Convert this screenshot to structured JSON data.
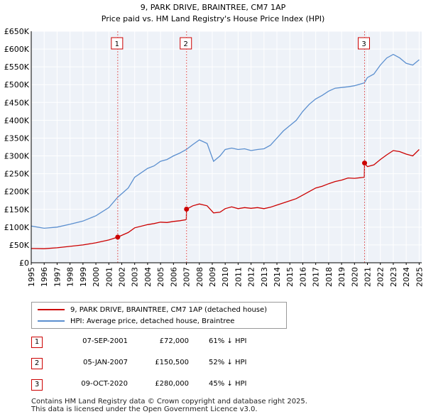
{
  "chart_data": {
    "type": "line",
    "title": "9, PARK DRIVE, BRAINTREE, CM7 1AP",
    "subtitle": "Price paid vs. HM Land Registry's House Price Index (HPI)",
    "xlim": [
      1995,
      2025.2
    ],
    "ylim": [
      0,
      650000
    ],
    "y_ticks": [
      {
        "v": 0,
        "label": "£0"
      },
      {
        "v": 50000,
        "label": "£50K"
      },
      {
        "v": 100000,
        "label": "£100K"
      },
      {
        "v": 150000,
        "label": "£150K"
      },
      {
        "v": 200000,
        "label": "£200K"
      },
      {
        "v": 250000,
        "label": "£250K"
      },
      {
        "v": 300000,
        "label": "£300K"
      },
      {
        "v": 350000,
        "label": "£350K"
      },
      {
        "v": 400000,
        "label": "£400K"
      },
      {
        "v": 450000,
        "label": "£450K"
      },
      {
        "v": 500000,
        "label": "£500K"
      },
      {
        "v": 550000,
        "label": "£550K"
      },
      {
        "v": 600000,
        "label": "£600K"
      },
      {
        "v": 650000,
        "label": "£650K"
      }
    ],
    "x_ticks": [
      "1995",
      "1996",
      "1997",
      "1998",
      "1999",
      "2000",
      "2001",
      "2002",
      "2003",
      "2004",
      "2005",
      "2006",
      "2007",
      "2008",
      "2009",
      "2010",
      "2011",
      "2012",
      "2013",
      "2014",
      "2015",
      "2016",
      "2017",
      "2018",
      "2019",
      "2020",
      "2021",
      "2022",
      "2023",
      "2024",
      "2025"
    ],
    "series": [
      {
        "name": "9, PARK DRIVE, BRAINTREE, CM7 1AP (detached house)",
        "color": "#cc0000",
        "points": [
          [
            1995,
            40000
          ],
          [
            1996,
            39500
          ],
          [
            1997,
            42000
          ],
          [
            1998,
            46000
          ],
          [
            1999,
            50000
          ],
          [
            2000,
            56000
          ],
          [
            2001,
            64000
          ],
          [
            2001.69,
            72000
          ],
          [
            2002.5,
            85000
          ],
          [
            2003,
            98000
          ],
          [
            2004,
            107000
          ],
          [
            2004.5,
            110000
          ],
          [
            2005,
            114000
          ],
          [
            2005.5,
            113000
          ],
          [
            2006,
            116000
          ],
          [
            2006.5,
            118000
          ],
          [
            2006.99,
            121000
          ],
          [
            2007.01,
            150500
          ],
          [
            2007.5,
            160000
          ],
          [
            2008,
            165000
          ],
          [
            2008.6,
            160000
          ],
          [
            2009.1,
            140000
          ],
          [
            2009.6,
            142000
          ],
          [
            2010,
            152000
          ],
          [
            2010.5,
            157000
          ],
          [
            2011,
            152000
          ],
          [
            2011.5,
            155000
          ],
          [
            2012,
            153000
          ],
          [
            2012.5,
            155000
          ],
          [
            2013,
            152000
          ],
          [
            2013.5,
            156000
          ],
          [
            2014,
            162000
          ],
          [
            2014.5,
            168000
          ],
          [
            2015,
            174000
          ],
          [
            2015.5,
            180000
          ],
          [
            2016,
            190000
          ],
          [
            2016.5,
            200000
          ],
          [
            2017,
            210000
          ],
          [
            2017.5,
            215000
          ],
          [
            2018,
            222000
          ],
          [
            2018.5,
            228000
          ],
          [
            2019,
            232000
          ],
          [
            2019.5,
            238000
          ],
          [
            2020,
            237000
          ],
          [
            2020.76,
            240000
          ],
          [
            2020.78,
            280000
          ],
          [
            2021,
            270000
          ],
          [
            2021.5,
            275000
          ],
          [
            2022,
            290000
          ],
          [
            2022.5,
            303000
          ],
          [
            2023,
            315000
          ],
          [
            2023.5,
            312000
          ],
          [
            2024,
            305000
          ],
          [
            2024.5,
            300000
          ],
          [
            2025,
            318000
          ]
        ]
      },
      {
        "name": "HPI: Average price, detached house, Braintree",
        "color": "#5b8fcf",
        "points": [
          [
            1995,
            103000
          ],
          [
            1996,
            97000
          ],
          [
            1997,
            100000
          ],
          [
            1998,
            108000
          ],
          [
            1999,
            117000
          ],
          [
            2000,
            132000
          ],
          [
            2001,
            155000
          ],
          [
            2001.69,
            184000
          ],
          [
            2002.5,
            210000
          ],
          [
            2003,
            240000
          ],
          [
            2004,
            265000
          ],
          [
            2004.5,
            272000
          ],
          [
            2005,
            285000
          ],
          [
            2005.5,
            290000
          ],
          [
            2006,
            300000
          ],
          [
            2006.5,
            308000
          ],
          [
            2007,
            318000
          ],
          [
            2007.5,
            332000
          ],
          [
            2008,
            345000
          ],
          [
            2008.6,
            335000
          ],
          [
            2009.1,
            285000
          ],
          [
            2009.6,
            300000
          ],
          [
            2010,
            318000
          ],
          [
            2010.5,
            322000
          ],
          [
            2011,
            318000
          ],
          [
            2011.5,
            320000
          ],
          [
            2012,
            315000
          ],
          [
            2012.5,
            318000
          ],
          [
            2013,
            320000
          ],
          [
            2013.5,
            330000
          ],
          [
            2014,
            350000
          ],
          [
            2014.5,
            370000
          ],
          [
            2015,
            385000
          ],
          [
            2015.5,
            400000
          ],
          [
            2016,
            425000
          ],
          [
            2016.5,
            445000
          ],
          [
            2017,
            460000
          ],
          [
            2017.5,
            470000
          ],
          [
            2018,
            482000
          ],
          [
            2018.5,
            490000
          ],
          [
            2019,
            492000
          ],
          [
            2019.5,
            494000
          ],
          [
            2020,
            497000
          ],
          [
            2020.76,
            505000
          ],
          [
            2021,
            520000
          ],
          [
            2021.5,
            530000
          ],
          [
            2022,
            555000
          ],
          [
            2022.5,
            575000
          ],
          [
            2023,
            585000
          ],
          [
            2023.5,
            575000
          ],
          [
            2024,
            560000
          ],
          [
            2024.5,
            555000
          ],
          [
            2025,
            570000
          ]
        ]
      }
    ],
    "sale_markers": [
      {
        "label": "1",
        "x": 2001.69,
        "price": 72000
      },
      {
        "label": "2",
        "x": 2007.01,
        "price": 150500
      },
      {
        "label": "3",
        "x": 2020.78,
        "price": 280000
      }
    ],
    "grid": true
  },
  "legend": {
    "property_label": "9, PARK DRIVE, BRAINTREE, CM7 1AP (detached house)",
    "hpi_label": "HPI: Average price, detached house, Braintree"
  },
  "sales": [
    {
      "num": "1",
      "date": "07-SEP-2001",
      "price": "£72,000",
      "hpi": "61% ↓ HPI"
    },
    {
      "num": "2",
      "date": "05-JAN-2007",
      "price": "£150,500",
      "hpi": "52% ↓ HPI"
    },
    {
      "num": "3",
      "date": "09-OCT-2020",
      "price": "£280,000",
      "hpi": "45% ↓ HPI"
    }
  ],
  "footer": {
    "line1": "Contains HM Land Registry data © Crown copyright and database right 2025.",
    "line2": "This data is licensed under the Open Government Licence v3.0."
  }
}
